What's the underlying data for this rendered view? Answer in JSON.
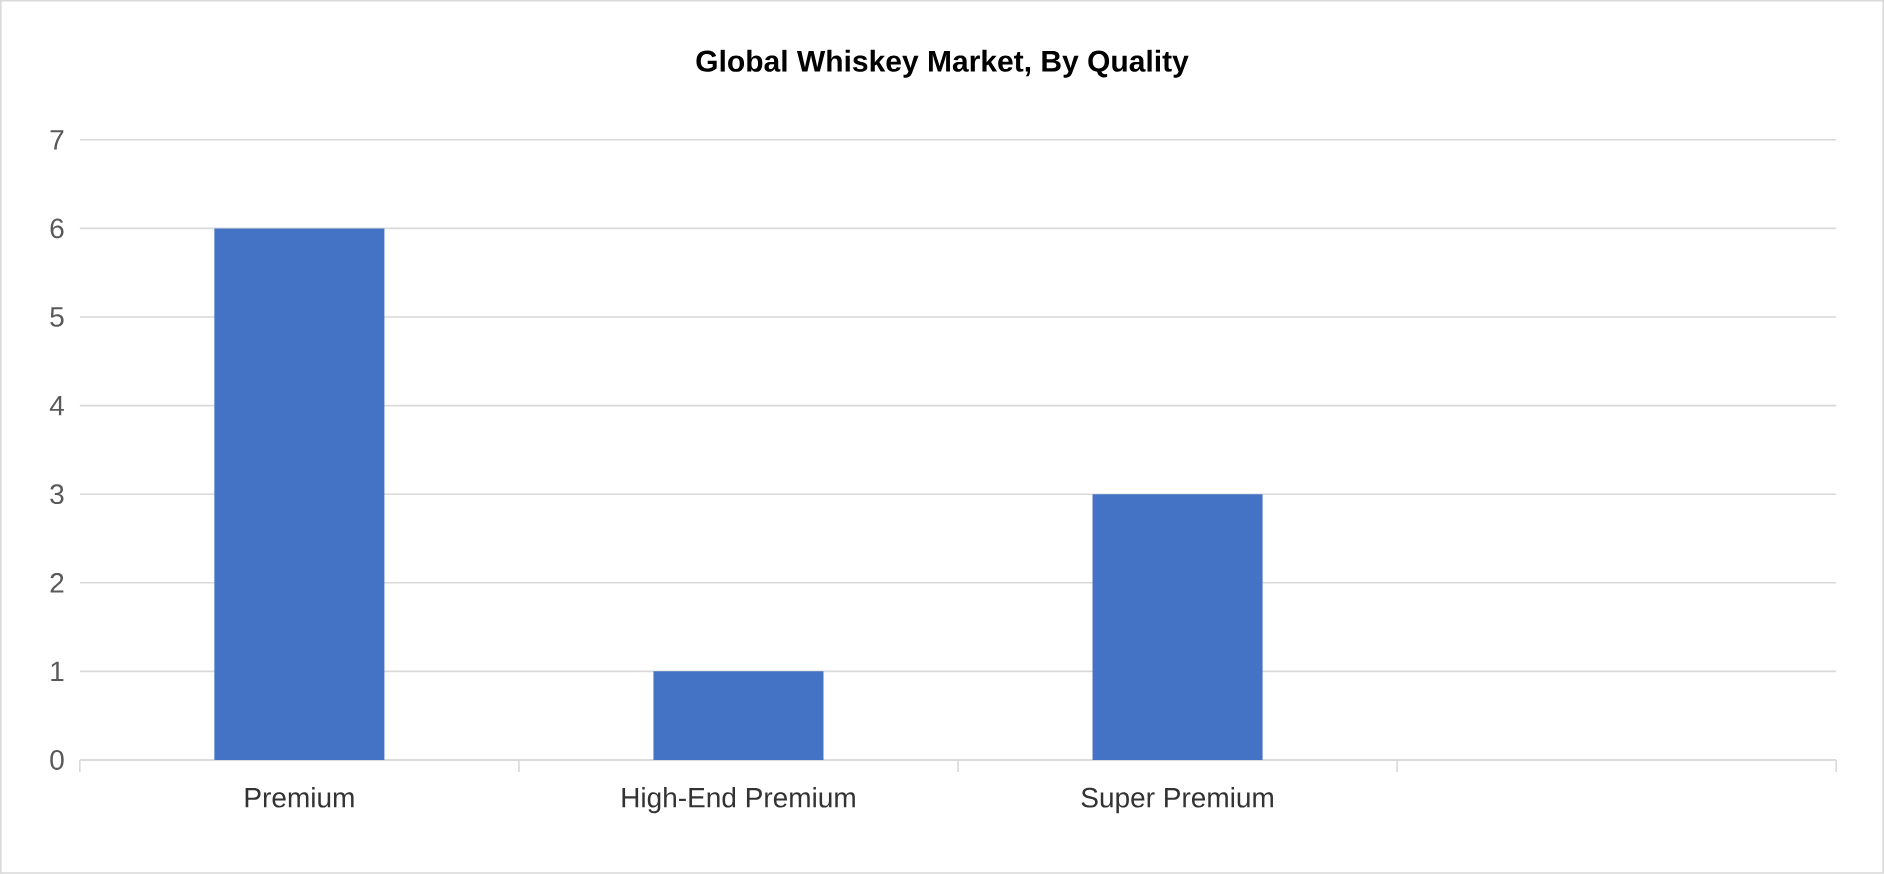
{
  "chart_data": {
    "type": "bar",
    "title": "Global Whiskey Market, By Quality",
    "categories": [
      "Premium",
      "High-End Premium",
      "Super Premium",
      null
    ],
    "values": [
      6,
      1,
      3,
      null
    ],
    "color": "#4472c4",
    "ylim": [
      0,
      7
    ],
    "yticks": [
      0,
      1,
      2,
      3,
      4,
      5,
      6,
      7
    ],
    "grid": "y"
  }
}
